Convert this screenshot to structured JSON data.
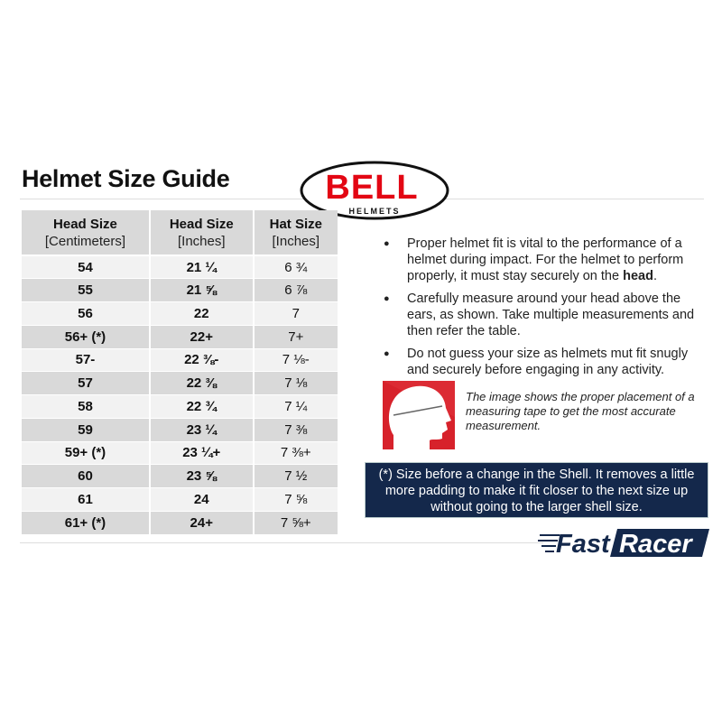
{
  "title": "Helmet Size Guide",
  "logo": {
    "brand": "BELL",
    "sub": "HELMETS",
    "color": "#e30613"
  },
  "table": {
    "headers": [
      {
        "main": "Head Size",
        "unit": "[Centimeters]"
      },
      {
        "main": "Head Size",
        "unit": "[Inches]"
      },
      {
        "main": "Hat Size",
        "unit": "[Inches]"
      }
    ],
    "rows": [
      [
        "54",
        "21 ¼",
        "6 ¾"
      ],
      [
        "55",
        "21 ⅝",
        "6 ⅞"
      ],
      [
        "56",
        "22",
        "7"
      ],
      [
        "56+ (*)",
        "22+",
        "7+"
      ],
      [
        "57-",
        "22 ⅜-",
        "7 ⅛-"
      ],
      [
        "57",
        "22 ⅜",
        "7 ⅛"
      ],
      [
        "58",
        "22 ¾",
        "7 ¼"
      ],
      [
        "59",
        "23 ¼",
        "7 ⅜"
      ],
      [
        "59+ (*)",
        "23 ¼+",
        "7 ⅜+"
      ],
      [
        "60",
        "23 ⅝",
        "7 ½"
      ],
      [
        "61",
        "24",
        "7 ⅝"
      ],
      [
        "61+ (*)",
        "24+",
        "7 ⅝+"
      ]
    ]
  },
  "bullets": [
    {
      "text": "Proper helmet fit is vital to the performance of a helmet during impact. For the helmet to perform properly, it must stay securely on the ",
      "bold": "head",
      "end": "."
    },
    {
      "text": "Carefully measure around your head above the ears, as shown. Take multiple measurements and then refer the table."
    },
    {
      "text": "Do not guess your size as helmets mut fit snugly and securely before engaging in any activity."
    }
  ],
  "caption": "The image shows the proper placement of a measuring tape to get the most accurate measurement.",
  "note": "(*) Size before a change in the Shell. It removes a little more padding to make it fit closer to the next size up without going to the larger shell size.",
  "brand_footer": {
    "text": "FastRacer",
    "part1": "Fast",
    "part2": "Racer",
    "color": "#14284b"
  }
}
